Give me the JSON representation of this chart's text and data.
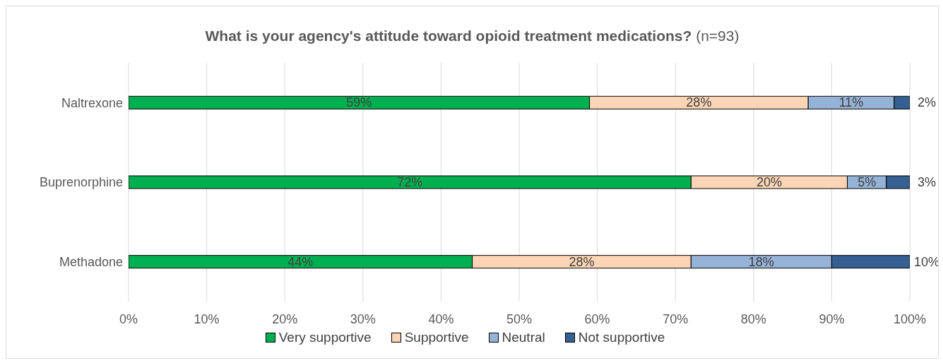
{
  "chart_data": {
    "type": "bar",
    "title": "What is your agency's attitude toward opioid treatment medications?",
    "subtitle": "(n=93)",
    "orientation": "horizontal",
    "stacked": true,
    "categories": [
      "Naltrexone",
      "Buprenorphine",
      "Methadone"
    ],
    "series": [
      {
        "name": "Very supportive",
        "color": "#00b050",
        "values": [
          59,
          72,
          44
        ],
        "value_labels": [
          "59%",
          "72%",
          "44%"
        ]
      },
      {
        "name": "Supportive",
        "color": "#fbd5b5",
        "values": [
          28,
          20,
          28
        ],
        "value_labels": [
          "28%",
          "20%",
          "28%"
        ]
      },
      {
        "name": "Neutral",
        "color": "#95b3d7",
        "values": [
          11,
          5,
          18
        ],
        "value_labels": [
          "11%",
          "5%",
          "18%"
        ]
      },
      {
        "name": "Not supportive",
        "color": "#366092",
        "values": [
          2,
          3,
          10
        ],
        "value_labels": [
          "2%",
          "3%",
          "10%"
        ]
      }
    ],
    "xlim": [
      0,
      100
    ],
    "xticks": [
      {
        "value": 0,
        "label": "0%"
      },
      {
        "value": 10,
        "label": "10%"
      },
      {
        "value": 20,
        "label": "20%"
      },
      {
        "value": 30,
        "label": "30%"
      },
      {
        "value": 40,
        "label": "40%"
      },
      {
        "value": 50,
        "label": "50%"
      },
      {
        "value": 60,
        "label": "60%"
      },
      {
        "value": 70,
        "label": "70%"
      },
      {
        "value": 80,
        "label": "80%"
      },
      {
        "value": 90,
        "label": "90%"
      },
      {
        "value": 100,
        "label": "100%"
      }
    ],
    "grid": "x",
    "legend": "bottom"
  }
}
